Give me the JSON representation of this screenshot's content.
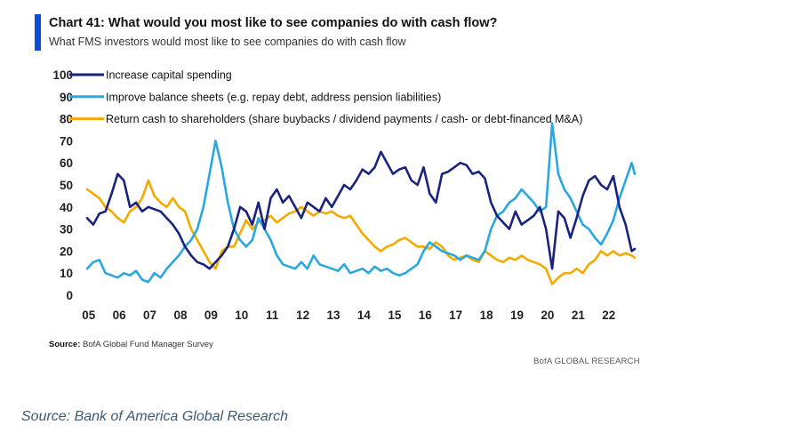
{
  "header": {
    "title": "Chart 41: What would you most like to see companies do with cash flow?",
    "subtitle": "What FMS investors would most like to see companies do with cash flow"
  },
  "footer": {
    "source_label": "Source:",
    "source_text": "BofA Global Fund Manager Survey",
    "brand": "BofA GLOBAL RESEARCH",
    "caption": "Source: Bank of America Global Research"
  },
  "colors": {
    "accent": "#0a4fd3",
    "capex": "#1a237e",
    "balance": "#29a8e0",
    "cash": "#f5aa00"
  },
  "chart_data": {
    "type": "line",
    "title": "Chart 41: What would you most like to see companies do with cash flow?",
    "ylim": [
      0,
      100
    ],
    "yticks": [
      0,
      10,
      20,
      30,
      40,
      50,
      60,
      70,
      80,
      90,
      100
    ],
    "xlim": [
      2005,
      2022.9
    ],
    "xticks": [
      2005,
      2006,
      2007,
      2008,
      2009,
      2010,
      2011,
      2012,
      2013,
      2014,
      2015,
      2016,
      2017,
      2018,
      2019,
      2020,
      2021,
      2022
    ],
    "xticklabels": [
      "05",
      "06",
      "07",
      "08",
      "09",
      "10",
      "11",
      "12",
      "13",
      "14",
      "15",
      "16",
      "17",
      "18",
      "19",
      "20",
      "21",
      "22"
    ],
    "grid": false,
    "legend_position": "top-left",
    "series": [
      {
        "name": "Increase capital spending",
        "color": "#1a237e",
        "x": [
          2005.0,
          2005.2,
          2005.4,
          2005.6,
          2005.8,
          2006.0,
          2006.2,
          2006.4,
          2006.6,
          2006.8,
          2007.0,
          2007.2,
          2007.4,
          2007.6,
          2007.8,
          2008.0,
          2008.2,
          2008.4,
          2008.6,
          2008.8,
          2009.0,
          2009.2,
          2009.4,
          2009.6,
          2009.8,
          2010.0,
          2010.2,
          2010.4,
          2010.6,
          2010.8,
          2011.0,
          2011.2,
          2011.4,
          2011.6,
          2011.8,
          2012.0,
          2012.2,
          2012.4,
          2012.6,
          2012.8,
          2013.0,
          2013.2,
          2013.4,
          2013.6,
          2013.8,
          2014.0,
          2014.2,
          2014.4,
          2014.6,
          2014.8,
          2015.0,
          2015.2,
          2015.4,
          2015.6,
          2015.8,
          2016.0,
          2016.2,
          2016.4,
          2016.6,
          2016.8,
          2017.0,
          2017.2,
          2017.4,
          2017.6,
          2017.8,
          2018.0,
          2018.2,
          2018.4,
          2018.6,
          2018.8,
          2019.0,
          2019.2,
          2019.4,
          2019.6,
          2019.8,
          2020.0,
          2020.2,
          2020.4,
          2020.6,
          2020.8,
          2021.0,
          2021.2,
          2021.4,
          2021.6,
          2021.8,
          2022.0,
          2022.2,
          2022.4,
          2022.6,
          2022.8,
          2022.9
        ],
        "values": [
          35,
          32,
          37,
          38,
          46,
          55,
          52,
          40,
          42,
          38,
          40,
          39,
          38,
          35,
          32,
          28,
          22,
          18,
          15,
          14,
          12,
          15,
          18,
          22,
          30,
          40,
          38,
          32,
          42,
          30,
          44,
          48,
          42,
          45,
          40,
          35,
          42,
          40,
          38,
          44,
          40,
          45,
          50,
          48,
          52,
          57,
          55,
          58,
          65,
          60,
          55,
          57,
          58,
          52,
          50,
          58,
          46,
          42,
          55,
          56,
          58,
          60,
          59,
          55,
          56,
          53,
          42,
          36,
          33,
          30,
          38,
          32,
          34,
          36,
          40,
          30,
          12,
          38,
          35,
          26,
          35,
          45,
          52,
          54,
          50,
          48,
          54,
          40,
          32,
          20,
          21
        ]
      },
      {
        "name": "Improve balance sheets (e.g. repay debt, address pension liabilities)",
        "color": "#29a8e0",
        "x": [
          2005.0,
          2005.2,
          2005.4,
          2005.6,
          2005.8,
          2006.0,
          2006.2,
          2006.4,
          2006.6,
          2006.8,
          2007.0,
          2007.2,
          2007.4,
          2007.6,
          2007.8,
          2008.0,
          2008.2,
          2008.4,
          2008.6,
          2008.8,
          2009.0,
          2009.2,
          2009.4,
          2009.6,
          2009.8,
          2010.0,
          2010.2,
          2010.4,
          2010.6,
          2010.8,
          2011.0,
          2011.2,
          2011.4,
          2011.6,
          2011.8,
          2012.0,
          2012.2,
          2012.4,
          2012.6,
          2012.8,
          2013.0,
          2013.2,
          2013.4,
          2013.6,
          2013.8,
          2014.0,
          2014.2,
          2014.4,
          2014.6,
          2014.8,
          2015.0,
          2015.2,
          2015.4,
          2015.6,
          2015.8,
          2016.0,
          2016.2,
          2016.4,
          2016.6,
          2016.8,
          2017.0,
          2017.2,
          2017.4,
          2017.6,
          2017.8,
          2018.0,
          2018.2,
          2018.4,
          2018.6,
          2018.8,
          2019.0,
          2019.2,
          2019.4,
          2019.6,
          2019.8,
          2020.0,
          2020.2,
          2020.4,
          2020.6,
          2020.8,
          2021.0,
          2021.2,
          2021.4,
          2021.6,
          2021.8,
          2022.0,
          2022.2,
          2022.4,
          2022.6,
          2022.8,
          2022.9
        ],
        "values": [
          12,
          15,
          16,
          10,
          9,
          8,
          10,
          9,
          11,
          7,
          6,
          10,
          8,
          12,
          15,
          18,
          22,
          25,
          30,
          40,
          55,
          70,
          58,
          42,
          30,
          25,
          22,
          25,
          35,
          30,
          25,
          18,
          14,
          13,
          12,
          15,
          12,
          18,
          14,
          13,
          12,
          11,
          14,
          10,
          11,
          12,
          10,
          13,
          11,
          12,
          10,
          9,
          10,
          12,
          14,
          20,
          24,
          22,
          20,
          19,
          18,
          16,
          18,
          17,
          16,
          20,
          30,
          36,
          38,
          42,
          44,
          48,
          45,
          42,
          38,
          40,
          78,
          55,
          48,
          44,
          38,
          32,
          30,
          26,
          23,
          28,
          34,
          44,
          52,
          60,
          55
        ]
      },
      {
        "name": "Return cash to shareholders (share buybacks / dividend payments / cash- or debt-financed M&A)",
        "color": "#f5aa00",
        "x": [
          2005.0,
          2005.2,
          2005.4,
          2005.6,
          2005.8,
          2006.0,
          2006.2,
          2006.4,
          2006.6,
          2006.8,
          2007.0,
          2007.2,
          2007.4,
          2007.6,
          2007.8,
          2008.0,
          2008.2,
          2008.4,
          2008.6,
          2008.8,
          2009.0,
          2009.2,
          2009.4,
          2009.6,
          2009.8,
          2010.0,
          2010.2,
          2010.4,
          2010.6,
          2010.8,
          2011.0,
          2011.2,
          2011.4,
          2011.6,
          2011.8,
          2012.0,
          2012.2,
          2012.4,
          2012.6,
          2012.8,
          2013.0,
          2013.2,
          2013.4,
          2013.6,
          2013.8,
          2014.0,
          2014.2,
          2014.4,
          2014.6,
          2014.8,
          2015.0,
          2015.2,
          2015.4,
          2015.6,
          2015.8,
          2016.0,
          2016.2,
          2016.4,
          2016.6,
          2016.8,
          2017.0,
          2017.2,
          2017.4,
          2017.6,
          2017.8,
          2018.0,
          2018.2,
          2018.4,
          2018.6,
          2018.8,
          2019.0,
          2019.2,
          2019.4,
          2019.6,
          2019.8,
          2020.0,
          2020.2,
          2020.4,
          2020.6,
          2020.8,
          2021.0,
          2021.2,
          2021.4,
          2021.6,
          2021.8,
          2022.0,
          2022.2,
          2022.4,
          2022.6,
          2022.8,
          2022.9
        ],
        "values": [
          48,
          46,
          44,
          40,
          38,
          35,
          33,
          38,
          40,
          44,
          52,
          45,
          42,
          40,
          44,
          40,
          38,
          30,
          25,
          20,
          15,
          12,
          20,
          22,
          22,
          28,
          34,
          30,
          33,
          34,
          36,
          33,
          35,
          37,
          38,
          40,
          38,
          36,
          38,
          37,
          38,
          36,
          35,
          36,
          32,
          28,
          25,
          22,
          20,
          22,
          23,
          25,
          26,
          24,
          22,
          22,
          21,
          24,
          22,
          18,
          16,
          17,
          18,
          16,
          15,
          20,
          18,
          16,
          15,
          17,
          16,
          18,
          16,
          15,
          14,
          12,
          5,
          8,
          10,
          10,
          12,
          10,
          14,
          16,
          20,
          18,
          20,
          18,
          19,
          18,
          17
        ]
      }
    ]
  }
}
